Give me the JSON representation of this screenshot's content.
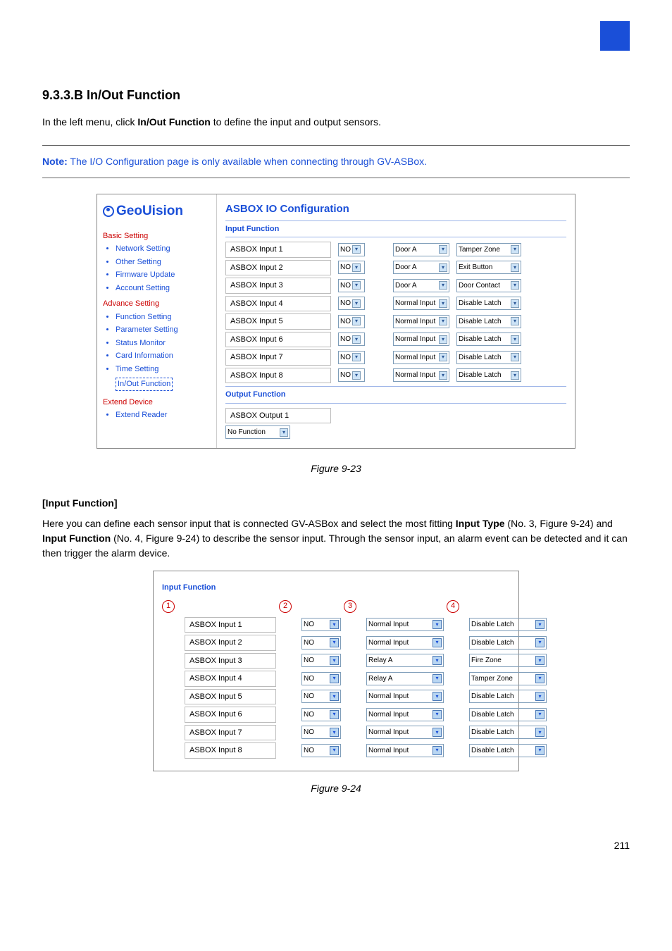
{
  "topBox": {
    "color": "#1a4fd8"
  },
  "section1": {
    "heading": "9.3.3.B  In/Out Function",
    "line1a": "In the left menu, click ",
    "line1b": "In/Out Function",
    "line1c": " to define the input and output sensors."
  },
  "note": {
    "label": "Note:",
    "text": " The I/O Configuration page is only available when connecting through GV-ASBox."
  },
  "shot1": {
    "logo": "GeoUision",
    "title": "ASBOX IO Configuration",
    "inputHead": "Input Function",
    "outputHead": "Output Function",
    "cats": {
      "basic": "Basic Setting",
      "advance": "Advance Setting",
      "extend": "Extend Device"
    },
    "nav": {
      "basic": [
        "Network Setting",
        "Other Setting",
        "Firmware Update",
        "Account Setting"
      ],
      "advance": [
        "Function Setting",
        "Parameter Setting",
        "Status Monitor",
        "Card Information",
        "Time Setting",
        "In/Out Function"
      ],
      "extend": [
        "Extend Reader"
      ]
    },
    "rows": [
      {
        "name": "ASBOX Input 1",
        "mode": "NO",
        "a": "Door A",
        "b": "Tamper Zone"
      },
      {
        "name": "ASBOX Input 2",
        "mode": "NO",
        "a": "Door A",
        "b": "Exit Button"
      },
      {
        "name": "ASBOX Input 3",
        "mode": "NO",
        "a": "Door A",
        "b": "Door Contact"
      },
      {
        "name": "ASBOX Input 4",
        "mode": "NO",
        "a": "Normal Input",
        "b": "Disable Latch"
      },
      {
        "name": "ASBOX Input 5",
        "mode": "NO",
        "a": "Normal Input",
        "b": "Disable Latch"
      },
      {
        "name": "ASBOX Input 6",
        "mode": "NO",
        "a": "Normal Input",
        "b": "Disable Latch"
      },
      {
        "name": "ASBOX Input 7",
        "mode": "NO",
        "a": "Normal Input",
        "b": "Disable Latch"
      },
      {
        "name": "ASBOX Input 8",
        "mode": "NO",
        "a": "Normal Input",
        "b": "Disable Latch"
      }
    ],
    "out1": "ASBOX Output 1",
    "outSel": "No Function"
  },
  "figcap1": "Figure 9-23",
  "inputFuncHead": "[Input Function]",
  "para2a": "Here you can define each sensor input that is connected GV-ASBox and select the most fitting ",
  "para2b": "Input Type",
  "para2c": " (No. 3, Figure 9-24) and ",
  "para2d": "Input Function",
  "para2e": " (No. 4, Figure 9-24) to describe the sensor input. Through the sensor input, an alarm event can be detected and it can then trigger the alarm device.",
  "shot2": {
    "head": "Input Function",
    "nums": [
      "1",
      "2",
      "3",
      "4"
    ],
    "rows": [
      {
        "name": "ASBOX Input 1",
        "mode": "NO",
        "a": "Normal Input",
        "b": "Disable Latch"
      },
      {
        "name": "ASBOX Input 2",
        "mode": "NO",
        "a": "Normal Input",
        "b": "Disable Latch"
      },
      {
        "name": "ASBOX Input 3",
        "mode": "NO",
        "a": "Relay A",
        "b": "Fire Zone"
      },
      {
        "name": "ASBOX Input 4",
        "mode": "NO",
        "a": "Relay A",
        "b": "Tamper Zone"
      },
      {
        "name": "ASBOX Input 5",
        "mode": "NO",
        "a": "Normal Input",
        "b": "Disable Latch"
      },
      {
        "name": "ASBOX Input 6",
        "mode": "NO",
        "a": "Normal Input",
        "b": "Disable Latch"
      },
      {
        "name": "ASBOX Input 7",
        "mode": "NO",
        "a": "Normal Input",
        "b": "Disable Latch"
      },
      {
        "name": "ASBOX Input 8",
        "mode": "NO",
        "a": "Normal Input",
        "b": "Disable Latch"
      }
    ]
  },
  "figcap2": "Figure 9-24",
  "pageNum": "211"
}
